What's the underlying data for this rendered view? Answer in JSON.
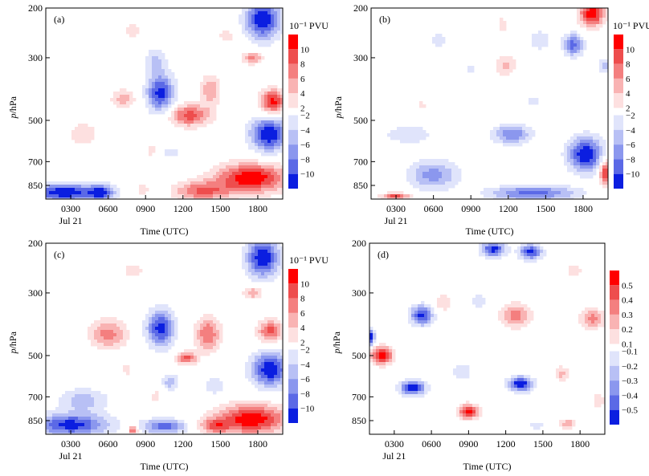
{
  "figure": {
    "common": {
      "ylabel_italic": "p",
      "ylabel_rest": "/hPa",
      "xlabel": "Time (UTC)",
      "xticks": [
        "0300",
        "0600",
        "0900",
        "1200",
        "1500",
        "1800"
      ],
      "date_label": "Jul 21",
      "yticks": [
        200,
        300,
        500,
        700,
        850
      ]
    },
    "colors": {
      "positive": [
        "#fde0e0",
        "#f9b3b3",
        "#f47f7f",
        "#ee4d4d",
        "#ff0000"
      ],
      "negative": [
        "#e0e4fb",
        "#b8c0f5",
        "#8b97ee",
        "#5b69e6",
        "#0b1ee0"
      ]
    }
  },
  "chart_data": [
    {
      "panel": "(a)",
      "type": "heatmap",
      "colorbar_unit": "10⁻¹ PVU",
      "colorbar_positive": [
        "2",
        "4",
        "6",
        "8",
        "10"
      ],
      "colorbar_negative": [
        "−2",
        "−4",
        "−6",
        "−8",
        "−10"
      ],
      "colorbar_levels": [
        -10,
        -8,
        -6,
        -4,
        -2,
        2,
        4,
        6,
        8,
        10
      ],
      "xlim": [
        "0100",
        "2000"
      ],
      "ylim": [
        950,
        200
      ],
      "blobs": [
        {
          "t": 18.4,
          "p": 220,
          "v": -12,
          "rt": 1.4,
          "rp": 0.16
        },
        {
          "t": 10.2,
          "p": 400,
          "v": -11,
          "rt": 1.1,
          "rp": 0.16
        },
        {
          "t": 9.8,
          "p": 305,
          "v": -4,
          "rt": 0.9,
          "rp": 0.1
        },
        {
          "t": 18.9,
          "p": 560,
          "v": -12,
          "rt": 1.5,
          "rp": 0.14
        },
        {
          "t": 2.5,
          "p": 900,
          "v": -12,
          "rt": 2.8,
          "rp": 0.07
        },
        {
          "t": 5.5,
          "p": 900,
          "v": -9,
          "rt": 1.0,
          "rp": 0.06
        },
        {
          "t": 11.0,
          "p": 650,
          "v": -3,
          "rt": 0.8,
          "rp": 0.06
        },
        {
          "t": 12.5,
          "p": 480,
          "v": 9,
          "rt": 1.7,
          "rp": 0.09
        },
        {
          "t": 14.2,
          "p": 390,
          "v": 6,
          "rt": 0.8,
          "rp": 0.12
        },
        {
          "t": 19.2,
          "p": 430,
          "v": 11,
          "rt": 1.0,
          "rp": 0.1
        },
        {
          "t": 17.6,
          "p": 300,
          "v": 7,
          "rt": 0.8,
          "rp": 0.05
        },
        {
          "t": 17.5,
          "p": 800,
          "v": 12,
          "rt": 2.8,
          "rp": 0.12
        },
        {
          "t": 13.5,
          "p": 890,
          "v": 8,
          "rt": 2.2,
          "rp": 0.08
        },
        {
          "t": 4.0,
          "p": 560,
          "v": 4,
          "rt": 1.1,
          "rp": 0.1
        },
        {
          "t": 7.2,
          "p": 420,
          "v": 5,
          "rt": 1.0,
          "rp": 0.08
        },
        {
          "t": 8.0,
          "p": 240,
          "v": 3,
          "rt": 0.8,
          "rp": 0.08
        },
        {
          "t": 15.5,
          "p": 250,
          "v": 3,
          "rt": 0.9,
          "rp": 0.06
        },
        {
          "t": 8.8,
          "p": 880,
          "v": 3,
          "rt": 0.5,
          "rp": 0.06
        },
        {
          "t": 9.5,
          "p": 640,
          "v": 2.5,
          "rt": 0.5,
          "rp": 0.08
        }
      ]
    },
    {
      "panel": "(b)",
      "type": "heatmap",
      "colorbar_unit": "10⁻¹ PVU",
      "colorbar_positive": [
        "2",
        "4",
        "6",
        "8",
        "10"
      ],
      "colorbar_negative": [
        "−2",
        "−4",
        "−6",
        "−8",
        "−10"
      ],
      "colorbar_levels": [
        -10,
        -8,
        -6,
        -4,
        -2,
        2,
        4,
        6,
        8,
        10
      ],
      "xlim": [
        "0100",
        "2000"
      ],
      "ylim": [
        950,
        200
      ],
      "blobs": [
        {
          "t": 18.7,
          "p": 210,
          "v": 12,
          "rt": 1.0,
          "rp": 0.1
        },
        {
          "t": 17.2,
          "p": 270,
          "v": -9,
          "rt": 0.8,
          "rp": 0.09
        },
        {
          "t": 18.2,
          "p": 660,
          "v": -12,
          "rt": 1.4,
          "rp": 0.14
        },
        {
          "t": 12.3,
          "p": 560,
          "v": -8,
          "rt": 1.5,
          "rp": 0.08
        },
        {
          "t": 6.0,
          "p": 780,
          "v": -7,
          "rt": 2.0,
          "rp": 0.12
        },
        {
          "t": 14.0,
          "p": 905,
          "v": -9,
          "rt": 3.5,
          "rp": 0.06
        },
        {
          "t": 4.0,
          "p": 560,
          "v": -3,
          "rt": 2.5,
          "rp": 0.1
        },
        {
          "t": 11.8,
          "p": 320,
          "v": 5,
          "rt": 0.8,
          "rp": 0.08
        },
        {
          "t": 11.5,
          "p": 230,
          "v": 3,
          "rt": 0.5,
          "rp": 0.08
        },
        {
          "t": 14.5,
          "p": 260,
          "v": -4,
          "rt": 0.9,
          "rp": 0.08
        },
        {
          "t": 6.5,
          "p": 260,
          "v": -3,
          "rt": 0.9,
          "rp": 0.07
        },
        {
          "t": 19.8,
          "p": 320,
          "v": -5,
          "rt": 0.6,
          "rp": 0.06
        },
        {
          "t": 19.8,
          "p": 760,
          "v": 11,
          "rt": 0.5,
          "rp": 0.1
        },
        {
          "t": 3.0,
          "p": 930,
          "v": 9,
          "rt": 1.2,
          "rp": 0.03
        },
        {
          "t": 14.0,
          "p": 430,
          "v": -2.5,
          "rt": 0.8,
          "rp": 0.06
        },
        {
          "t": 9.0,
          "p": 330,
          "v": -2.5,
          "rt": 0.6,
          "rp": 0.06
        },
        {
          "t": 5.0,
          "p": 440,
          "v": 2.5,
          "rt": 0.6,
          "rp": 0.06
        }
      ]
    },
    {
      "panel": "(c)",
      "type": "heatmap",
      "colorbar_unit": "10⁻¹ PVU",
      "colorbar_positive": [
        "2",
        "4",
        "6",
        "8",
        "10"
      ],
      "colorbar_negative": [
        "−2",
        "−4",
        "−6",
        "−8",
        "−10"
      ],
      "colorbar_levels": [
        -10,
        -8,
        -6,
        -4,
        -2,
        2,
        4,
        6,
        8,
        10
      ],
      "xlim": [
        "0100",
        "2000"
      ],
      "ylim": [
        950,
        200
      ],
      "blobs": [
        {
          "t": 18.4,
          "p": 225,
          "v": -12,
          "rt": 1.3,
          "rp": 0.16
        },
        {
          "t": 10.2,
          "p": 400,
          "v": -11,
          "rt": 1.1,
          "rp": 0.15
        },
        {
          "t": 19.0,
          "p": 560,
          "v": -12,
          "rt": 1.5,
          "rp": 0.14
        },
        {
          "t": 3.0,
          "p": 880,
          "v": -11,
          "rt": 3.0,
          "rp": 0.09
        },
        {
          "t": 10.5,
          "p": 890,
          "v": -9,
          "rt": 1.8,
          "rp": 0.06
        },
        {
          "t": 4.0,
          "p": 720,
          "v": -5,
          "rt": 2.0,
          "rp": 0.1
        },
        {
          "t": 11.0,
          "p": 620,
          "v": -6,
          "rt": 0.6,
          "rp": 0.06
        },
        {
          "t": 14.5,
          "p": 640,
          "v": -4,
          "rt": 0.9,
          "rp": 0.07
        },
        {
          "t": 6.0,
          "p": 420,
          "v": 7,
          "rt": 1.5,
          "rp": 0.12
        },
        {
          "t": 14.0,
          "p": 420,
          "v": 8,
          "rt": 1.0,
          "rp": 0.14
        },
        {
          "t": 12.3,
          "p": 510,
          "v": 9,
          "rt": 0.8,
          "rp": 0.05
        },
        {
          "t": 19.0,
          "p": 410,
          "v": 9,
          "rt": 1.0,
          "rp": 0.09
        },
        {
          "t": 17.5,
          "p": 840,
          "v": 12,
          "rt": 2.8,
          "rp": 0.12
        },
        {
          "t": 14.5,
          "p": 890,
          "v": 7,
          "rt": 1.2,
          "rp": 0.06
        },
        {
          "t": 8.0,
          "p": 250,
          "v": 3,
          "rt": 1.0,
          "rp": 0.08
        },
        {
          "t": 17.6,
          "p": 300,
          "v": 6,
          "rt": 0.8,
          "rp": 0.05
        },
        {
          "t": 8.0,
          "p": 920,
          "v": 9,
          "rt": 0.4,
          "rp": 0.04
        },
        {
          "t": 9.8,
          "p": 700,
          "v": 3,
          "rt": 0.5,
          "rp": 0.06
        },
        {
          "t": 7.5,
          "p": 560,
          "v": 3,
          "rt": 0.5,
          "rp": 0.06
        }
      ]
    },
    {
      "panel": "(d)",
      "type": "heatmap",
      "colorbar_unit": "",
      "colorbar_positive": [
        "0.1",
        "0.2",
        "0.3",
        "0.4",
        "0.5"
      ],
      "colorbar_negative": [
        "−0.1",
        "−0.2",
        "−0.3",
        "−0.4",
        "−0.5"
      ],
      "colorbar_levels": [
        -0.5,
        -0.4,
        -0.3,
        -0.2,
        -0.1,
        0.1,
        0.2,
        0.3,
        0.4,
        0.5
      ],
      "xlim": [
        "0100",
        "2000"
      ],
      "ylim": [
        950,
        200
      ],
      "blobs": [
        {
          "t": 11.0,
          "p": 210,
          "v": -0.55,
          "rt": 1.0,
          "rp": 0.06
        },
        {
          "t": 14.0,
          "p": 215,
          "v": -0.55,
          "rt": 0.9,
          "rp": 0.06
        },
        {
          "t": 5.2,
          "p": 360,
          "v": -0.55,
          "rt": 0.9,
          "rp": 0.08
        },
        {
          "t": 1.0,
          "p": 430,
          "v": -0.6,
          "rt": 0.4,
          "rp": 0.07
        },
        {
          "t": 2.0,
          "p": 500,
          "v": 0.6,
          "rt": 0.9,
          "rp": 0.07
        },
        {
          "t": 4.5,
          "p": 650,
          "v": -0.6,
          "rt": 1.0,
          "rp": 0.06
        },
        {
          "t": 13.2,
          "p": 630,
          "v": -0.6,
          "rt": 1.0,
          "rp": 0.06
        },
        {
          "t": 9.0,
          "p": 790,
          "v": 0.55,
          "rt": 0.8,
          "rp": 0.06
        },
        {
          "t": 12.8,
          "p": 360,
          "v": 0.35,
          "rt": 1.2,
          "rp": 0.1
        },
        {
          "t": 19.0,
          "p": 370,
          "v": 0.35,
          "rt": 1.0,
          "rp": 0.08
        },
        {
          "t": 7.0,
          "p": 325,
          "v": 0.2,
          "rt": 0.7,
          "rp": 0.07
        },
        {
          "t": 8.5,
          "p": 570,
          "v": -0.2,
          "rt": 0.8,
          "rp": 0.07
        },
        {
          "t": 16.5,
          "p": 580,
          "v": 0.25,
          "rt": 0.6,
          "rp": 0.06
        },
        {
          "t": 17.0,
          "p": 870,
          "v": 0.3,
          "rt": 0.6,
          "rp": 0.04
        },
        {
          "t": 14.5,
          "p": 880,
          "v": -0.15,
          "rt": 0.8,
          "rp": 0.04
        },
        {
          "t": 9.8,
          "p": 320,
          "v": -0.15,
          "rt": 0.8,
          "rp": 0.07
        },
        {
          "t": 17.5,
          "p": 250,
          "v": 0.15,
          "rt": 0.8,
          "rp": 0.08
        },
        {
          "t": 19.5,
          "p": 720,
          "v": 0.2,
          "rt": 0.5,
          "rp": 0.06
        }
      ]
    }
  ]
}
